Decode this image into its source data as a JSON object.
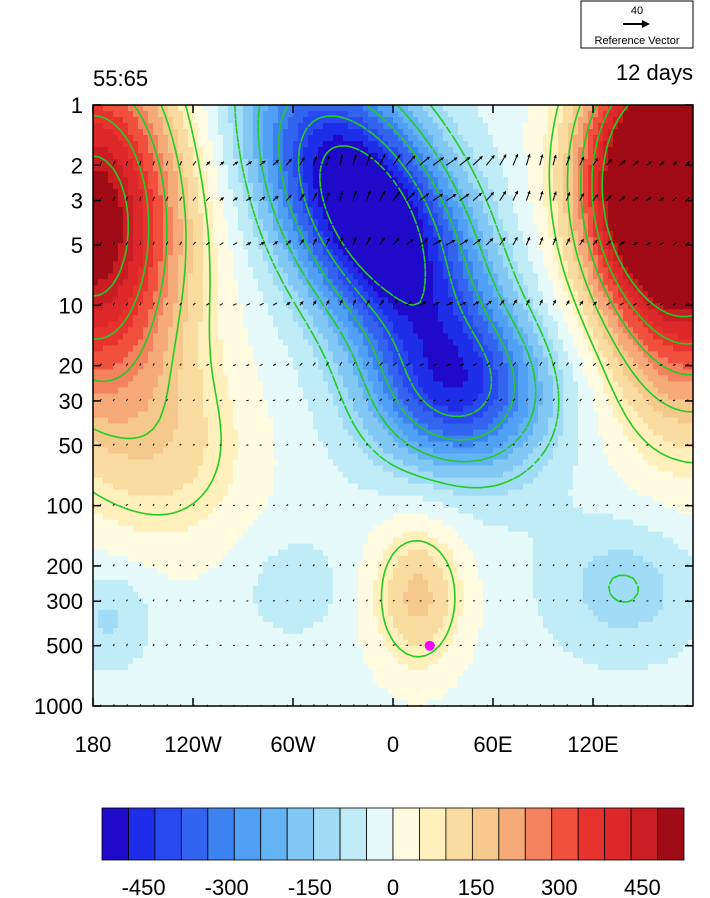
{
  "reference_vector": {
    "magnitude": "40",
    "label": "Reference Vector"
  },
  "plot": {
    "left_title": "55:65",
    "right_title": "12 days",
    "marker_color": "#ff00ff"
  },
  "chart_data": {
    "type": "heatmap",
    "title": "",
    "xlabel": "",
    "ylabel": "",
    "x_ticks": [
      "180",
      "120W",
      "60W",
      "0",
      "60E",
      "120E"
    ],
    "x_tick_values": [
      -180,
      -120,
      -60,
      0,
      60,
      120
    ],
    "xlim": [
      -180,
      180
    ],
    "y_ticks": [
      "1",
      "2",
      "3",
      "5",
      "10",
      "20",
      "30",
      "50",
      "100",
      "200",
      "300",
      "500",
      "1000"
    ],
    "y_tick_values": [
      1,
      2,
      3,
      5,
      10,
      20,
      30,
      50,
      100,
      200,
      300,
      500,
      1000
    ],
    "ylim": [
      1000,
      1
    ],
    "y_scale": "log",
    "contour_line_color": "#22cc22",
    "vector_color": "#000000",
    "marker": {
      "lon": 22,
      "p": 500
    },
    "colorbar": {
      "levels": [
        -525,
        -475,
        -425,
        -375,
        -325,
        -275,
        -225,
        -175,
        -125,
        -75,
        -25,
        25,
        75,
        125,
        175,
        225,
        275,
        325,
        375,
        425,
        475,
        525
      ],
      "colors": [
        "#1e0ac8",
        "#1e2ee8",
        "#2848f0",
        "#3264f0",
        "#3c82f0",
        "#50a0f5",
        "#64b4f5",
        "#82c8f5",
        "#a0dcf5",
        "#c0ecf8",
        "#e6fafa",
        "#fffbe0",
        "#fff0bc",
        "#fbdca0",
        "#f5c88c",
        "#f5aa78",
        "#f5825f",
        "#f0503c",
        "#e8322d",
        "#dc2828",
        "#c81e23",
        "#a00a14"
      ],
      "tick_labels": [
        "-450",
        "-300",
        "-150",
        "0",
        "150",
        "300",
        "450"
      ],
      "tick_values": [
        -450,
        -300,
        -150,
        0,
        150,
        300,
        450
      ]
    }
  }
}
